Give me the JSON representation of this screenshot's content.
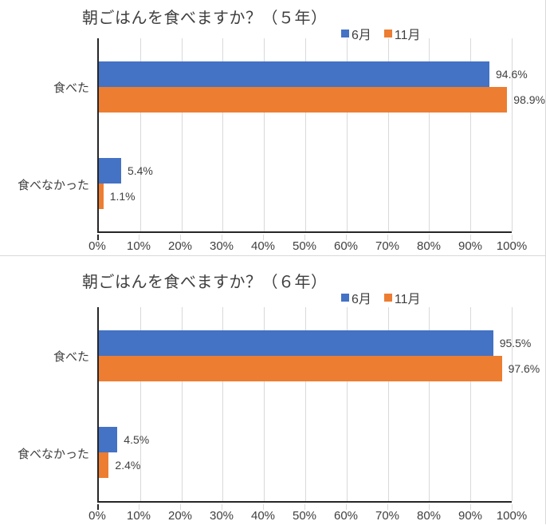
{
  "page": {
    "background": "#ffffff",
    "panel_border_color": "#d9d9d9"
  },
  "colors": {
    "series_june_blue": "#4472c4",
    "series_november_orange": "#ed7d31",
    "gridline": "#d9d9d9",
    "axis_line": "#262626",
    "text": "#404040"
  },
  "chart_data": [
    {
      "type": "bar",
      "orientation": "horizontal",
      "title": "朝ごはんを食べますか？（５年）",
      "categories": [
        "食べた",
        "食べなかった"
      ],
      "series": [
        {
          "name": "6月",
          "color": "#4472c4",
          "values": [
            94.6,
            5.4
          ]
        },
        {
          "name": "11月",
          "color": "#ed7d31",
          "values": [
            98.9,
            1.1
          ]
        }
      ],
      "data_labels": [
        [
          "94.6%",
          "5.4%"
        ],
        [
          "98.9%",
          "1.1%"
        ]
      ],
      "xlim": [
        0,
        100
      ],
      "x_ticks": [
        "0%",
        "10%",
        "20%",
        "30%",
        "40%",
        "50%",
        "60%",
        "70%",
        "80%",
        "90%",
        "100%"
      ],
      "grid": true,
      "legend_position": "top-right"
    },
    {
      "type": "bar",
      "orientation": "horizontal",
      "title": "朝ごはんを食べますか？（６年）",
      "categories": [
        "食べた",
        "食べなかった"
      ],
      "series": [
        {
          "name": "6月",
          "color": "#4472c4",
          "values": [
            95.5,
            4.5
          ]
        },
        {
          "name": "11月",
          "color": "#ed7d31",
          "values": [
            97.6,
            2.4
          ]
        }
      ],
      "data_labels": [
        [
          "95.5%",
          "4.5%"
        ],
        [
          "97.6%",
          "2.4%"
        ]
      ],
      "xlim": [
        0,
        100
      ],
      "x_ticks": [
        "0%",
        "10%",
        "20%",
        "30%",
        "40%",
        "50%",
        "60%",
        "70%",
        "80%",
        "90%",
        "100%"
      ],
      "grid": true,
      "legend_position": "top-right"
    }
  ]
}
